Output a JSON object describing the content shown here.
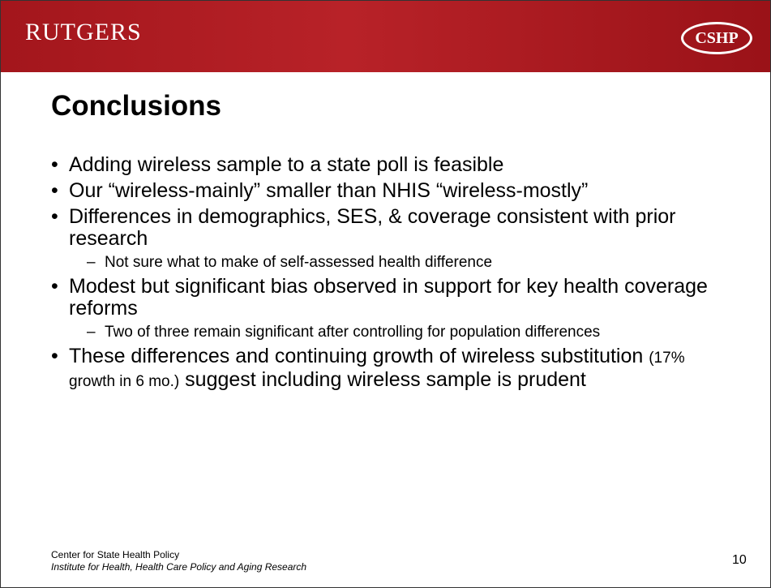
{
  "header": {
    "left_logo": "RUTGERS",
    "right_logo": "CSHP"
  },
  "title": "Conclusions",
  "bullets": [
    {
      "text": "Adding wireless sample to a state poll is feasible"
    },
    {
      "text": "Our “wireless-mainly” smaller than NHIS “wireless-mostly”"
    },
    {
      "text": "Differences in demographics, SES, & coverage consistent with prior research",
      "sub": [
        "Not sure what to make of self-assessed health difference"
      ]
    },
    {
      "text": "Modest but significant bias observed in support for key health coverage reforms",
      "sub": [
        "Two of three remain significant after controlling for population differences"
      ]
    },
    {
      "text_parts": [
        "These differences and continuing growth of wireless substitution ",
        "(17% growth in 6 mo.)",
        " suggest including wireless sample is prudent"
      ]
    }
  ],
  "footer": {
    "line1": "Center for State Health Policy",
    "line2": "Institute for Health, Health Care Policy and Aging Research",
    "page": "10"
  }
}
